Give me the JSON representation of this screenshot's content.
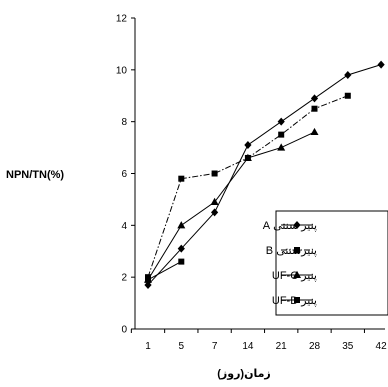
{
  "chart_data": {
    "type": "line",
    "title": "",
    "xlabel": "زمان(روز)",
    "ylabel": "NPN/TN(%)",
    "categories": [
      "1",
      "5",
      "7",
      "14",
      "21",
      "28",
      "35",
      "42"
    ],
    "ylim": [
      0,
      12
    ],
    "yticks": [
      0,
      2,
      4,
      6,
      8,
      10,
      12
    ],
    "grid": false,
    "legend_position": "right",
    "series": [
      {
        "name": "پنیر سنتی A",
        "marker": "diamond",
        "dash": "solid",
        "values": [
          1.7,
          3.1,
          4.5,
          7.1,
          8.0,
          8.9,
          9.8,
          10.2
        ]
      },
      {
        "name": "پنیرسنتی B",
        "marker": "square",
        "dash": "dashdot",
        "values": [
          2.0,
          5.8,
          6.0,
          6.6,
          7.5,
          8.5,
          9.0,
          null
        ]
      },
      {
        "name": "پنیر UF-C",
        "marker": "triangle",
        "dash": "solid",
        "values": [
          1.9,
          4.0,
          4.9,
          6.6,
          7.0,
          7.6,
          null,
          null
        ]
      },
      {
        "name": "پنیر UF-D",
        "marker": "square",
        "dash": "solid",
        "values": [
          1.9,
          2.6,
          null,
          null,
          null,
          null,
          null,
          null
        ]
      }
    ]
  }
}
